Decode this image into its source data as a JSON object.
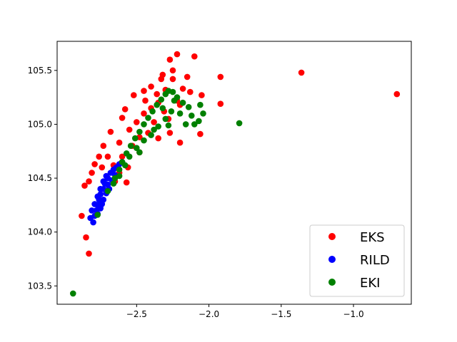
{
  "chart_data": {
    "type": "scatter",
    "title": "",
    "xlabel": "",
    "ylabel": "",
    "xlim": [
      -3.05,
      -0.6
    ],
    "ylim": [
      103.33,
      105.77
    ],
    "xticks": [
      -2.5,
      -2.0,
      -1.5,
      -1.0
    ],
    "xtick_labels": [
      "−2.5",
      "−2.0",
      "−1.5",
      "−1.0"
    ],
    "yticks": [
      103.5,
      104.0,
      104.5,
      105.0,
      105.5
    ],
    "ytick_labels": [
      "103.5",
      "104.0",
      "104.5",
      "105.0",
      "105.5"
    ],
    "grid": false,
    "legend_position": "lower-right",
    "series": [
      {
        "name": "EKS",
        "color": "#ff0000",
        "points": [
          [
            -2.22,
            105.65
          ],
          [
            -2.1,
            105.63
          ],
          [
            -2.27,
            105.6
          ],
          [
            -1.92,
            105.44
          ],
          [
            -1.36,
            105.48
          ],
          [
            -0.7,
            105.28
          ],
          [
            -1.92,
            105.19
          ],
          [
            -2.06,
            104.91
          ],
          [
            -2.86,
            104.43
          ],
          [
            -2.88,
            104.15
          ],
          [
            -2.85,
            103.95
          ],
          [
            -2.83,
            103.8
          ],
          [
            -2.65,
            104.47
          ],
          [
            -2.79,
            104.63
          ],
          [
            -2.57,
            104.46
          ],
          [
            -2.48,
            104.74
          ],
          [
            -2.35,
            104.87
          ],
          [
            -2.27,
            104.92
          ],
          [
            -2.2,
            104.83
          ],
          [
            -2.15,
            105.44
          ],
          [
            -2.13,
            105.3
          ],
          [
            -2.05,
            105.27
          ],
          [
            -2.45,
            105.31
          ],
          [
            -2.52,
            105.27
          ],
          [
            -2.58,
            105.14
          ],
          [
            -2.6,
            105.06
          ],
          [
            -2.68,
            104.93
          ],
          [
            -2.73,
            104.8
          ],
          [
            -2.76,
            104.7
          ],
          [
            -2.81,
            104.55
          ],
          [
            -2.83,
            104.47
          ],
          [
            -2.4,
            105.35
          ],
          [
            -2.33,
            105.42
          ],
          [
            -2.25,
            105.42
          ],
          [
            -2.18,
            105.33
          ],
          [
            -2.22,
            105.22
          ],
          [
            -2.35,
            105.2
          ],
          [
            -2.45,
            105.1
          ],
          [
            -2.55,
            104.95
          ],
          [
            -2.62,
            104.83
          ],
          [
            -2.7,
            104.7
          ],
          [
            -2.74,
            104.6
          ],
          [
            -2.5,
            105.02
          ],
          [
            -2.4,
            105.15
          ],
          [
            -2.3,
            105.32
          ],
          [
            -2.2,
            105.18
          ],
          [
            -2.28,
            105.05
          ],
          [
            -2.42,
            104.92
          ],
          [
            -2.53,
            104.8
          ],
          [
            -2.6,
            104.7
          ],
          [
            -2.66,
            104.62
          ],
          [
            -2.44,
            105.22
          ],
          [
            -2.36,
            105.28
          ],
          [
            -2.31,
            105.12
          ],
          [
            -2.38,
            105.02
          ],
          [
            -2.48,
            104.88
          ],
          [
            -2.56,
            104.6
          ],
          [
            -2.62,
            104.55
          ],
          [
            -2.25,
            105.5
          ],
          [
            -2.32,
            105.46
          ]
        ]
      },
      {
        "name": "RILD",
        "color": "#0000ff",
        "points": [
          [
            -2.8,
            104.09
          ],
          [
            -2.79,
            104.15
          ],
          [
            -2.78,
            104.2
          ],
          [
            -2.77,
            104.25
          ],
          [
            -2.76,
            104.3
          ],
          [
            -2.75,
            104.35
          ],
          [
            -2.73,
            104.4
          ],
          [
            -2.72,
            104.45
          ],
          [
            -2.7,
            104.5
          ],
          [
            -2.68,
            104.55
          ],
          [
            -2.66,
            104.58
          ],
          [
            -2.64,
            104.6
          ],
          [
            -2.62,
            104.63
          ],
          [
            -2.6,
            104.65
          ],
          [
            -2.81,
            104.2
          ],
          [
            -2.79,
            104.26
          ],
          [
            -2.77,
            104.33
          ],
          [
            -2.75,
            104.4
          ],
          [
            -2.73,
            104.47
          ],
          [
            -2.71,
            104.52
          ],
          [
            -2.69,
            104.4
          ],
          [
            -2.71,
            104.36
          ],
          [
            -2.73,
            104.3
          ],
          [
            -2.75,
            104.22
          ],
          [
            -2.77,
            104.17
          ],
          [
            -2.67,
            104.48
          ],
          [
            -2.65,
            104.53
          ],
          [
            -2.82,
            104.13
          ],
          [
            -2.7,
            104.44
          ],
          [
            -2.74,
            104.26
          ]
        ]
      },
      {
        "name": "EKI",
        "color": "#008000",
        "points": [
          [
            -2.94,
            103.43
          ],
          [
            -1.79,
            105.01
          ],
          [
            -2.77,
            104.16
          ],
          [
            -2.7,
            104.38
          ],
          [
            -2.65,
            104.5
          ],
          [
            -2.62,
            104.58
          ],
          [
            -2.6,
            104.65
          ],
          [
            -2.57,
            104.73
          ],
          [
            -2.54,
            104.8
          ],
          [
            -2.51,
            104.87
          ],
          [
            -2.48,
            104.93
          ],
          [
            -2.45,
            105.0
          ],
          [
            -2.42,
            105.06
          ],
          [
            -2.39,
            105.12
          ],
          [
            -2.36,
            105.18
          ],
          [
            -2.33,
            105.23
          ],
          [
            -2.3,
            105.28
          ],
          [
            -2.28,
            105.31
          ],
          [
            -2.25,
            105.3
          ],
          [
            -2.22,
            105.25
          ],
          [
            -2.18,
            105.2
          ],
          [
            -2.14,
            105.16
          ],
          [
            -2.12,
            105.08
          ],
          [
            -2.1,
            105.0
          ],
          [
            -2.07,
            105.03
          ],
          [
            -2.04,
            105.1
          ],
          [
            -2.06,
            105.18
          ],
          [
            -2.26,
            105.12
          ],
          [
            -2.3,
            105.05
          ],
          [
            -2.35,
            104.98
          ],
          [
            -2.4,
            104.9
          ],
          [
            -2.45,
            104.85
          ],
          [
            -2.5,
            104.78
          ],
          [
            -2.48,
            104.74
          ],
          [
            -2.38,
            104.95
          ],
          [
            -2.32,
            105.15
          ],
          [
            -2.24,
            105.22
          ],
          [
            -2.2,
            105.1
          ],
          [
            -2.16,
            105.0
          ],
          [
            -2.28,
            104.99
          ],
          [
            -2.55,
            104.7
          ],
          [
            -2.58,
            104.62
          ],
          [
            -2.62,
            104.52
          ],
          [
            -2.66,
            104.45
          ]
        ]
      }
    ]
  }
}
